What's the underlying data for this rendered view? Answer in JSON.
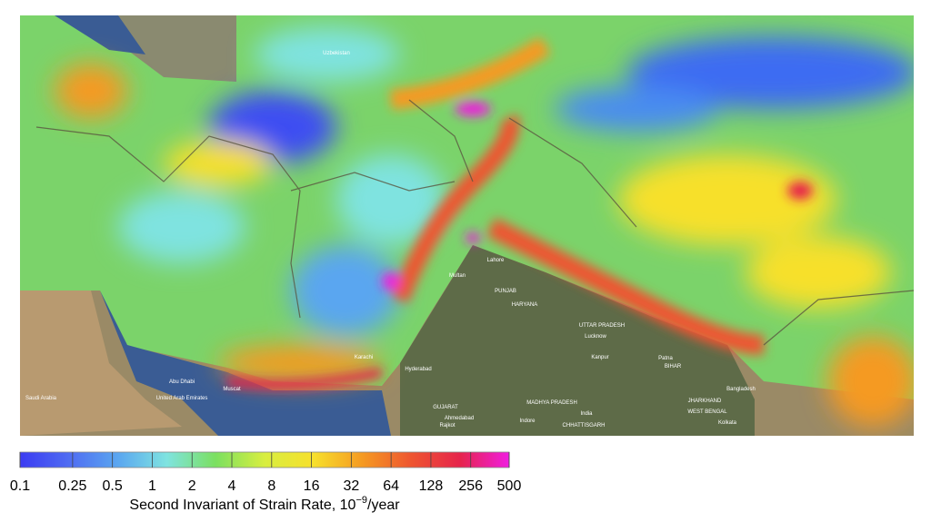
{
  "map": {
    "labels": [
      "Uzbekistan",
      "Lahore",
      "PUNJAB",
      "HARYANA",
      "UTTAR PRADESH",
      "Lucknow",
      "Kanpur",
      "BIHAR",
      "Patna",
      "India",
      "Abu Dhabi",
      "United Arab Emirates",
      "Saudi Arabia",
      "Muscat",
      "Ahmedabad",
      "GUJARAT",
      "Rajkot",
      "MADHYA PRADESH",
      "Indore",
      "CHHATTISGARH",
      "JHARKHAND",
      "WEST BENGAL",
      "Kolkata",
      "Bangladesh",
      "Multan",
      "Karachi",
      "Hyderabad"
    ]
  },
  "colorbar": {
    "scale": "log",
    "lim": [
      0.1,
      500
    ],
    "ticks": [
      0.1,
      0.25,
      0.5,
      1,
      2,
      4,
      8,
      16,
      32,
      64,
      128,
      256,
      500
    ],
    "colors": [
      "#3b3bf2",
      "#4f6cf2",
      "#5aa6f0",
      "#7fe3e0",
      "#7be060",
      "#d8ee40",
      "#f7e02c",
      "#f59a22",
      "#ee5530",
      "#e6244c",
      "#f01ee0"
    ],
    "label": {
      "text": "Second Invariant of Strain Rate, 10",
      "sup": "−9",
      "tail": "/year"
    }
  }
}
